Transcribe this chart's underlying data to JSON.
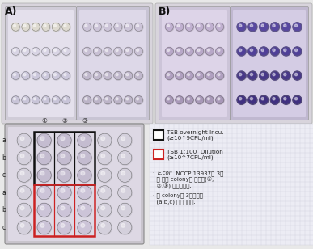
{
  "bg_color": "#e8e8e8",
  "panel_A_label": "A)",
  "panel_B_label": "B)",
  "legend_line1_text": "TSB overnight Incu.",
  "legend_line1_sub": "(≥10^9CFU/ml)",
  "legend_line2_text": "TSB 1:100  Dilution",
  "legend_line2_sub": "(≥10^7CFU/ml)",
  "note1_line1": "· E.coli  NCCP 13937의 3개",
  "note1_line2": "  의 다른 colony를 취하여(①,",
  "note1_line3": "  ②,③) 배양하였다.",
  "note2_line1": "· 각 colony를 3반복하여",
  "note2_line2": "  (a,b,c) 배양하였다.",
  "col_labels": [
    "①",
    "②",
    "③"
  ],
  "row_labels_top": [
    "a",
    "b",
    "c"
  ],
  "row_labels_bot": [
    "a",
    "b",
    "c"
  ],
  "black_box_color": "#111111",
  "red_box_color": "#cc2222",
  "plate_outer_bg": "#ccc8cc",
  "plate_inner_bg_light": "#e8e4ec",
  "plate_inner_bg_dark": "#d8d0e4",
  "well_A_left_light": "#dcd8e8",
  "well_A_left_dark": "#c8c0d8",
  "well_A_right_light": "#c8c0d8",
  "well_A_right_dark": "#b8b0cc",
  "well_B_left_light": "#b8a8cc",
  "well_B_left_dark": "#a898bc",
  "well_B_right_light": "#6050a0",
  "well_B_right_dark": "#504090",
  "well_bottom_light": "#ccc4d8",
  "well_bottom_dark": "#b8b0c8",
  "legend_bg": "#eeeef8",
  "legend_grid_color": "#ccccdd"
}
